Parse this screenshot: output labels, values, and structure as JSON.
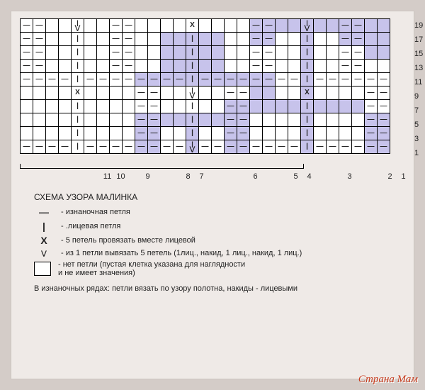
{
  "chart": {
    "cols": 29,
    "rows": 10,
    "row_labels": [
      "19",
      "17",
      "15",
      "13",
      "11",
      "9",
      "7",
      "5",
      "3",
      "1"
    ],
    "col_labels": [
      "11",
      "10",
      "",
      "9",
      "",
      "",
      "8",
      "7",
      "",
      "",
      "",
      "6",
      "",
      "",
      "5",
      "4",
      "",
      "",
      "3",
      "",
      "",
      "2",
      "1"
    ],
    "col_label_widths": [
      19,
      19,
      19,
      19,
      19,
      19,
      19,
      19,
      19,
      19,
      19,
      19,
      19,
      19,
      19,
      19,
      19,
      19,
      19,
      19,
      19,
      19,
      19
    ],
    "symbols": {
      "d": "—",
      "p": "|",
      "x": "X",
      "v": "⋁",
      "e": ""
    },
    "grid": [
      [
        {
          "s": "d"
        },
        {
          "s": "d"
        },
        {
          "s": "e"
        },
        {
          "s": "e"
        },
        {
          "s": "v"
        },
        {
          "s": "e"
        },
        {
          "s": "e"
        },
        {
          "s": "d"
        },
        {
          "s": "d"
        },
        {
          "s": "e"
        },
        {
          "s": "e"
        },
        {
          "s": "e"
        },
        {
          "s": "e"
        },
        {
          "s": "x"
        },
        {
          "s": "e"
        },
        {
          "s": "e"
        },
        {
          "s": "e"
        },
        {
          "s": "e"
        },
        {
          "s": "d",
          "h": 1
        },
        {
          "s": "d",
          "h": 1
        },
        {
          "s": "e",
          "h": 1
        },
        {
          "s": "e",
          "h": 1
        },
        {
          "s": "v",
          "h": 1
        },
        {
          "s": "e",
          "h": 1
        },
        {
          "s": "e",
          "h": 1
        },
        {
          "s": "d",
          "h": 1
        },
        {
          "s": "d",
          "h": 1
        },
        {
          "s": "e",
          "h": 1
        },
        {
          "s": "e",
          "h": 1
        }
      ],
      [
        {
          "s": "d"
        },
        {
          "s": "d"
        },
        {
          "s": "e"
        },
        {
          "s": "e"
        },
        {
          "s": "p"
        },
        {
          "s": "e"
        },
        {
          "s": "e"
        },
        {
          "s": "d"
        },
        {
          "s": "d"
        },
        {
          "s": "e"
        },
        {
          "s": "e"
        },
        {
          "s": "e",
          "h": 1
        },
        {
          "s": "e",
          "h": 1
        },
        {
          "s": "p",
          "h": 1
        },
        {
          "s": "e",
          "h": 1
        },
        {
          "s": "e",
          "h": 1
        },
        {
          "s": "e"
        },
        {
          "s": "e"
        },
        {
          "s": "d",
          "h": 1
        },
        {
          "s": "d",
          "h": 1
        },
        {
          "s": "e"
        },
        {
          "s": "e"
        },
        {
          "s": "p",
          "h": 1
        },
        {
          "s": "e"
        },
        {
          "s": "e"
        },
        {
          "s": "d",
          "h": 1
        },
        {
          "s": "d",
          "h": 1
        },
        {
          "s": "e",
          "h": 1
        },
        {
          "s": "e",
          "h": 1
        }
      ],
      [
        {
          "s": "d"
        },
        {
          "s": "d"
        },
        {
          "s": "e"
        },
        {
          "s": "e"
        },
        {
          "s": "p"
        },
        {
          "s": "e"
        },
        {
          "s": "e"
        },
        {
          "s": "d"
        },
        {
          "s": "d"
        },
        {
          "s": "e"
        },
        {
          "s": "e"
        },
        {
          "s": "e",
          "h": 1
        },
        {
          "s": "e",
          "h": 1
        },
        {
          "s": "p",
          "h": 1
        },
        {
          "s": "e",
          "h": 1
        },
        {
          "s": "e",
          "h": 1
        },
        {
          "s": "e"
        },
        {
          "s": "e"
        },
        {
          "s": "d"
        },
        {
          "s": "d"
        },
        {
          "s": "e"
        },
        {
          "s": "e"
        },
        {
          "s": "p",
          "h": 1
        },
        {
          "s": "e"
        },
        {
          "s": "e"
        },
        {
          "s": "d"
        },
        {
          "s": "d"
        },
        {
          "s": "e",
          "h": 1
        },
        {
          "s": "e",
          "h": 1
        }
      ],
      [
        {
          "s": "d"
        },
        {
          "s": "d"
        },
        {
          "s": "e"
        },
        {
          "s": "e"
        },
        {
          "s": "p"
        },
        {
          "s": "e"
        },
        {
          "s": "e"
        },
        {
          "s": "d"
        },
        {
          "s": "d"
        },
        {
          "s": "e"
        },
        {
          "s": "e"
        },
        {
          "s": "e",
          "h": 1
        },
        {
          "s": "e",
          "h": 1
        },
        {
          "s": "p",
          "h": 1
        },
        {
          "s": "e",
          "h": 1
        },
        {
          "s": "e",
          "h": 1
        },
        {
          "s": "e"
        },
        {
          "s": "e"
        },
        {
          "s": "d"
        },
        {
          "s": "d"
        },
        {
          "s": "e"
        },
        {
          "s": "e"
        },
        {
          "s": "p",
          "h": 1
        },
        {
          "s": "e"
        },
        {
          "s": "e"
        },
        {
          "s": "d"
        },
        {
          "s": "d"
        },
        {
          "s": "e"
        },
        {
          "s": "e"
        }
      ],
      [
        {
          "s": "d"
        },
        {
          "s": "d"
        },
        {
          "s": "d"
        },
        {
          "s": "d"
        },
        {
          "s": "p"
        },
        {
          "s": "d"
        },
        {
          "s": "d"
        },
        {
          "s": "d"
        },
        {
          "s": "d"
        },
        {
          "s": "d",
          "h": 1
        },
        {
          "s": "d",
          "h": 1
        },
        {
          "s": "d",
          "h": 1
        },
        {
          "s": "d",
          "h": 1
        },
        {
          "s": "p",
          "h": 1
        },
        {
          "s": "d",
          "h": 1
        },
        {
          "s": "d",
          "h": 1
        },
        {
          "s": "d",
          "h": 1
        },
        {
          "s": "d",
          "h": 1
        },
        {
          "s": "d",
          "h": 1
        },
        {
          "s": "d",
          "h": 1
        },
        {
          "s": "d"
        },
        {
          "s": "d"
        },
        {
          "s": "p",
          "h": 1
        },
        {
          "s": "d"
        },
        {
          "s": "d"
        },
        {
          "s": "d"
        },
        {
          "s": "d"
        },
        {
          "s": "d"
        },
        {
          "s": "d"
        }
      ],
      [
        {
          "s": "e"
        },
        {
          "s": "e"
        },
        {
          "s": "e"
        },
        {
          "s": "e"
        },
        {
          "s": "x"
        },
        {
          "s": "e"
        },
        {
          "s": "e"
        },
        {
          "s": "e"
        },
        {
          "s": "e"
        },
        {
          "s": "d"
        },
        {
          "s": "d"
        },
        {
          "s": "e"
        },
        {
          "s": "e"
        },
        {
          "s": "v"
        },
        {
          "s": "e"
        },
        {
          "s": "e"
        },
        {
          "s": "d"
        },
        {
          "s": "d"
        },
        {
          "s": "e",
          "h": 1
        },
        {
          "s": "e",
          "h": 1
        },
        {
          "s": "e"
        },
        {
          "s": "e"
        },
        {
          "s": "x",
          "h": 1
        },
        {
          "s": "e"
        },
        {
          "s": "e"
        },
        {
          "s": "e"
        },
        {
          "s": "e"
        },
        {
          "s": "d"
        },
        {
          "s": "d"
        }
      ],
      [
        {
          "s": "e"
        },
        {
          "s": "e"
        },
        {
          "s": "e"
        },
        {
          "s": "e"
        },
        {
          "s": "p"
        },
        {
          "s": "e"
        },
        {
          "s": "e"
        },
        {
          "s": "e"
        },
        {
          "s": "e"
        },
        {
          "s": "d"
        },
        {
          "s": "d"
        },
        {
          "s": "e"
        },
        {
          "s": "e"
        },
        {
          "s": "p"
        },
        {
          "s": "e"
        },
        {
          "s": "e"
        },
        {
          "s": "d",
          "h": 1
        },
        {
          "s": "d",
          "h": 1
        },
        {
          "s": "e",
          "h": 1
        },
        {
          "s": "e",
          "h": 1
        },
        {
          "s": "e",
          "h": 1
        },
        {
          "s": "e",
          "h": 1
        },
        {
          "s": "p",
          "h": 1
        },
        {
          "s": "e",
          "h": 1
        },
        {
          "s": "e",
          "h": 1
        },
        {
          "s": "e",
          "h": 1
        },
        {
          "s": "e",
          "h": 1
        },
        {
          "s": "d"
        },
        {
          "s": "d"
        }
      ],
      [
        {
          "s": "e"
        },
        {
          "s": "e"
        },
        {
          "s": "e"
        },
        {
          "s": "e"
        },
        {
          "s": "p"
        },
        {
          "s": "e"
        },
        {
          "s": "e"
        },
        {
          "s": "e"
        },
        {
          "s": "e"
        },
        {
          "s": "d",
          "h": 1
        },
        {
          "s": "d",
          "h": 1
        },
        {
          "s": "e",
          "h": 1
        },
        {
          "s": "e",
          "h": 1
        },
        {
          "s": "p",
          "h": 1
        },
        {
          "s": "e",
          "h": 1
        },
        {
          "s": "e",
          "h": 1
        },
        {
          "s": "d",
          "h": 1
        },
        {
          "s": "d",
          "h": 1
        },
        {
          "s": "e"
        },
        {
          "s": "e"
        },
        {
          "s": "e"
        },
        {
          "s": "e"
        },
        {
          "s": "p",
          "h": 1
        },
        {
          "s": "e"
        },
        {
          "s": "e"
        },
        {
          "s": "e"
        },
        {
          "s": "e"
        },
        {
          "s": "d",
          "h": 1
        },
        {
          "s": "d",
          "h": 1
        }
      ],
      [
        {
          "s": "e"
        },
        {
          "s": "e"
        },
        {
          "s": "e"
        },
        {
          "s": "e"
        },
        {
          "s": "p"
        },
        {
          "s": "e"
        },
        {
          "s": "e"
        },
        {
          "s": "e"
        },
        {
          "s": "e"
        },
        {
          "s": "d",
          "h": 1
        },
        {
          "s": "d",
          "h": 1
        },
        {
          "s": "e"
        },
        {
          "s": "e"
        },
        {
          "s": "p",
          "h": 1
        },
        {
          "s": "e"
        },
        {
          "s": "e"
        },
        {
          "s": "d",
          "h": 1
        },
        {
          "s": "d",
          "h": 1
        },
        {
          "s": "e"
        },
        {
          "s": "e"
        },
        {
          "s": "e"
        },
        {
          "s": "e"
        },
        {
          "s": "p",
          "h": 1
        },
        {
          "s": "e"
        },
        {
          "s": "e"
        },
        {
          "s": "e"
        },
        {
          "s": "e"
        },
        {
          "s": "d",
          "h": 1
        },
        {
          "s": "d",
          "h": 1
        }
      ],
      [
        {
          "s": "d"
        },
        {
          "s": "d"
        },
        {
          "s": "d"
        },
        {
          "s": "d"
        },
        {
          "s": "p"
        },
        {
          "s": "d"
        },
        {
          "s": "d"
        },
        {
          "s": "d"
        },
        {
          "s": "d"
        },
        {
          "s": "d",
          "h": 1
        },
        {
          "s": "d",
          "h": 1
        },
        {
          "s": "d"
        },
        {
          "s": "d"
        },
        {
          "s": "v",
          "h": 1
        },
        {
          "s": "d"
        },
        {
          "s": "d"
        },
        {
          "s": "d",
          "h": 1
        },
        {
          "s": "d",
          "h": 1
        },
        {
          "s": "d"
        },
        {
          "s": "d"
        },
        {
          "s": "d"
        },
        {
          "s": "d"
        },
        {
          "s": "p",
          "h": 1
        },
        {
          "s": "d"
        },
        {
          "s": "d"
        },
        {
          "s": "d"
        },
        {
          "s": "d"
        },
        {
          "s": "d",
          "h": 1
        },
        {
          "s": "d",
          "h": 1
        }
      ]
    ],
    "bracket_start_col": 9,
    "bracket_end_col": 29
  },
  "legend": {
    "title": "СХЕМА УЗОРА МАЛИНКА",
    "items": [
      {
        "sym": "—",
        "text": "- изнаночная петля",
        "cls": "sym-dash"
      },
      {
        "sym": "|",
        "text": "- .лицевая петля",
        "cls": "sym-pipe"
      },
      {
        "sym": "X",
        "text": "- 5 петель провязать вместе лицевой",
        "cls": "sym-x"
      },
      {
        "sym": "⋁",
        "text": "- из 1 петли вывязать 5 петель (1лиц., накид, 1 лиц., накид, 1 лиц.)",
        "cls": "sym-v"
      }
    ],
    "box_text": "- нет петли (пустая клетка указана для наглядности\n  и не имеет значения)",
    "footer": "В изнаночных рядах: петли вязать по узору полотна, накиды - лицевыми"
  },
  "watermark": "Страна Мам"
}
